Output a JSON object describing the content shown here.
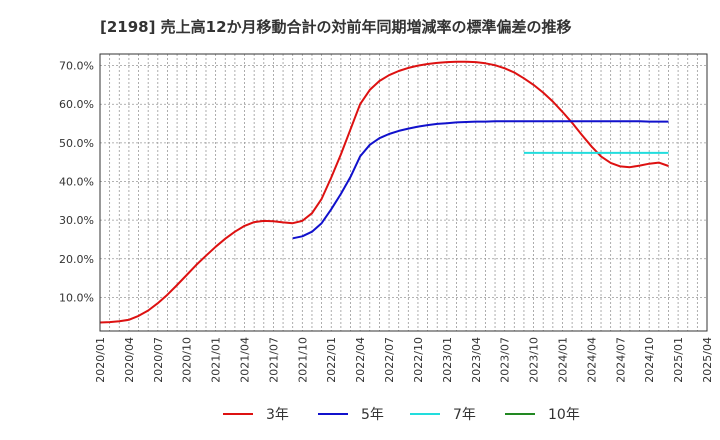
{
  "chart_data": {
    "type": "line",
    "title": "[2198]  売上高12か月移動合計の対前年同期増減率の標準偏差の推移",
    "xlabel": "",
    "ylabel": "",
    "ylim": [
      0.013,
      0.73
    ],
    "yticks": [
      0.1,
      0.2,
      0.3,
      0.4,
      0.5,
      0.6,
      0.7
    ],
    "ytick_labels": [
      "10.0%",
      "20.0%",
      "30.0%",
      "40.0%",
      "50.0%",
      "60.0%",
      "70.0%"
    ],
    "xlim": [
      "2020-01",
      "2025-04"
    ],
    "xtick_labels": [
      "2020/01",
      "2020/04",
      "2020/07",
      "2020/10",
      "2021/01",
      "2021/04",
      "2021/07",
      "2021/10",
      "2022/01",
      "2022/04",
      "2022/07",
      "2022/10",
      "2023/01",
      "2023/04",
      "2023/07",
      "2023/10",
      "2024/01",
      "2024/04",
      "2024/07",
      "2024/10",
      "2025/01",
      "2025/04"
    ],
    "grid": true,
    "legend_position": "bottom",
    "series": [
      {
        "name": "3年",
        "color": "#dd1111",
        "points": [
          [
            "2020-01",
            0.035
          ],
          [
            "2020-02",
            0.036
          ],
          [
            "2020-03",
            0.038
          ],
          [
            "2020-04",
            0.042
          ],
          [
            "2020-05",
            0.052
          ],
          [
            "2020-06",
            0.066
          ],
          [
            "2020-07",
            0.085
          ],
          [
            "2020-08",
            0.107
          ],
          [
            "2020-09",
            0.132
          ],
          [
            "2020-10",
            0.158
          ],
          [
            "2020-11",
            0.184
          ],
          [
            "2020-12",
            0.208
          ],
          [
            "2021-01",
            0.231
          ],
          [
            "2021-02",
            0.252
          ],
          [
            "2021-03",
            0.27
          ],
          [
            "2021-04",
            0.285
          ],
          [
            "2021-05",
            0.295
          ],
          [
            "2021-06",
            0.298
          ],
          [
            "2021-07",
            0.297
          ],
          [
            "2021-08",
            0.294
          ],
          [
            "2021-09",
            0.292
          ],
          [
            "2021-10",
            0.298
          ],
          [
            "2021-11",
            0.318
          ],
          [
            "2021-12",
            0.355
          ],
          [
            "2022-01",
            0.41
          ],
          [
            "2022-02",
            0.47
          ],
          [
            "2022-03",
            0.535
          ],
          [
            "2022-04",
            0.6
          ],
          [
            "2022-05",
            0.637
          ],
          [
            "2022-06",
            0.66
          ],
          [
            "2022-07",
            0.675
          ],
          [
            "2022-08",
            0.686
          ],
          [
            "2022-09",
            0.694
          ],
          [
            "2022-10",
            0.7
          ],
          [
            "2022-11",
            0.704
          ],
          [
            "2022-12",
            0.707
          ],
          [
            "2023-01",
            0.709
          ],
          [
            "2023-02",
            0.71
          ],
          [
            "2023-03",
            0.71
          ],
          [
            "2023-04",
            0.709
          ],
          [
            "2023-05",
            0.706
          ],
          [
            "2023-06",
            0.701
          ],
          [
            "2023-07",
            0.693
          ],
          [
            "2023-08",
            0.682
          ],
          [
            "2023-09",
            0.667
          ],
          [
            "2023-10",
            0.65
          ],
          [
            "2023-11",
            0.63
          ],
          [
            "2023-12",
            0.607
          ],
          [
            "2024-01",
            0.58
          ],
          [
            "2024-02",
            0.552
          ],
          [
            "2024-03",
            0.521
          ],
          [
            "2024-04",
            0.491
          ],
          [
            "2024-05",
            0.465
          ],
          [
            "2024-06",
            0.448
          ],
          [
            "2024-07",
            0.439
          ],
          [
            "2024-08",
            0.437
          ],
          [
            "2024-09",
            0.441
          ],
          [
            "2024-10",
            0.446
          ],
          [
            "2024-11",
            0.449
          ],
          [
            "2024-12",
            0.44
          ]
        ]
      },
      {
        "name": "5年",
        "color": "#1111cc",
        "points": [
          [
            "2021-09",
            0.253
          ],
          [
            "2021-10",
            0.258
          ],
          [
            "2021-11",
            0.27
          ],
          [
            "2021-12",
            0.292
          ],
          [
            "2022-01",
            0.328
          ],
          [
            "2022-02",
            0.368
          ],
          [
            "2022-03",
            0.412
          ],
          [
            "2022-04",
            0.465
          ],
          [
            "2022-05",
            0.495
          ],
          [
            "2022-06",
            0.512
          ],
          [
            "2022-07",
            0.523
          ],
          [
            "2022-08",
            0.531
          ],
          [
            "2022-09",
            0.537
          ],
          [
            "2022-10",
            0.542
          ],
          [
            "2022-11",
            0.546
          ],
          [
            "2022-12",
            0.549
          ],
          [
            "2023-01",
            0.551
          ],
          [
            "2023-02",
            0.553
          ],
          [
            "2023-03",
            0.554
          ],
          [
            "2023-04",
            0.555
          ],
          [
            "2023-05",
            0.555
          ],
          [
            "2023-06",
            0.556
          ],
          [
            "2023-07",
            0.556
          ],
          [
            "2023-08",
            0.556
          ],
          [
            "2023-09",
            0.556
          ],
          [
            "2023-10",
            0.556
          ],
          [
            "2023-11",
            0.556
          ],
          [
            "2023-12",
            0.556
          ],
          [
            "2024-01",
            0.556
          ],
          [
            "2024-02",
            0.556
          ],
          [
            "2024-03",
            0.556
          ],
          [
            "2024-04",
            0.556
          ],
          [
            "2024-05",
            0.556
          ],
          [
            "2024-06",
            0.556
          ],
          [
            "2024-07",
            0.556
          ],
          [
            "2024-08",
            0.556
          ],
          [
            "2024-09",
            0.556
          ],
          [
            "2024-10",
            0.555
          ],
          [
            "2024-11",
            0.555
          ],
          [
            "2024-12",
            0.555
          ]
        ]
      },
      {
        "name": "7年",
        "color": "#22dddd",
        "points": [
          [
            "2023-09",
            0.474
          ],
          [
            "2023-12",
            0.474
          ],
          [
            "2024-03",
            0.474
          ],
          [
            "2024-06",
            0.474
          ],
          [
            "2024-09",
            0.474
          ],
          [
            "2024-12",
            0.474
          ]
        ]
      },
      {
        "name": "10年",
        "color": "#228822",
        "points": []
      }
    ]
  }
}
